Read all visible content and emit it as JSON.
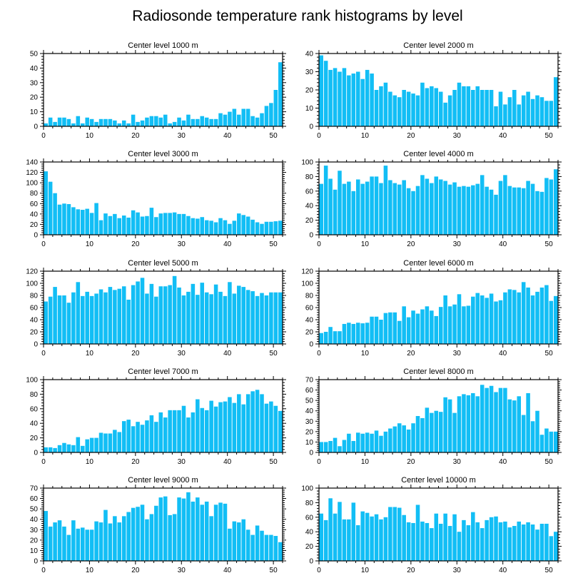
{
  "title": "Radiosonde temperature rank histograms by level",
  "colors": {
    "bar": "#12BEF5",
    "frame": "#000000",
    "background": "#ffffff"
  },
  "chart_data": [
    {
      "type": "bar",
      "title": "Center level 1000 m",
      "x": [
        0,
        1,
        2,
        3,
        4,
        5,
        6,
        7,
        8,
        9,
        10,
        11,
        12,
        13,
        14,
        15,
        16,
        17,
        18,
        19,
        20,
        21,
        22,
        23,
        24,
        25,
        26,
        27,
        28,
        29,
        30,
        31,
        32,
        33,
        34,
        35,
        36,
        37,
        38,
        39,
        40,
        41,
        42,
        43,
        44,
        45,
        46,
        47,
        48,
        49,
        50,
        51
      ],
      "values": [
        2,
        6,
        3,
        6,
        6,
        5,
        2,
        7,
        2,
        6,
        5,
        3,
        5,
        5,
        5,
        4,
        2,
        4,
        2,
        8,
        3,
        4,
        6,
        7,
        7,
        6,
        8,
        2,
        3,
        6,
        4,
        8,
        5,
        5,
        7,
        6,
        5,
        5,
        9,
        8,
        10,
        12,
        8,
        12,
        12,
        7,
        6,
        9,
        14,
        16,
        25,
        44
      ],
      "xlim": [
        0,
        52
      ],
      "ylim": [
        0,
        50
      ],
      "xticks": [
        0,
        10,
        20,
        30,
        40,
        50
      ],
      "yticks": [
        0,
        10,
        20,
        30,
        40,
        50
      ],
      "xlabel": "",
      "ylabel": ""
    },
    {
      "type": "bar",
      "title": "Center level 2000 m",
      "x": [
        0,
        1,
        2,
        3,
        4,
        5,
        6,
        7,
        8,
        9,
        10,
        11,
        12,
        13,
        14,
        15,
        16,
        17,
        18,
        19,
        20,
        21,
        22,
        23,
        24,
        25,
        26,
        27,
        28,
        29,
        30,
        31,
        32,
        33,
        34,
        35,
        36,
        37,
        38,
        39,
        40,
        41,
        42,
        43,
        44,
        45,
        46,
        47,
        48,
        49,
        50,
        51
      ],
      "values": [
        39,
        36,
        31,
        32,
        30,
        32,
        28,
        29,
        30,
        26,
        31,
        29,
        20,
        22,
        24,
        19,
        17,
        16,
        20,
        19,
        18,
        17,
        24,
        21,
        22,
        21,
        19,
        13,
        17,
        20,
        24,
        22,
        22,
        20,
        22,
        20,
        20,
        20,
        11,
        19,
        12,
        16,
        20,
        12,
        17,
        19,
        15,
        17,
        16,
        14,
        14,
        27
      ],
      "xlim": [
        0,
        52
      ],
      "ylim": [
        0,
        40
      ],
      "xticks": [
        0,
        10,
        20,
        30,
        40,
        50
      ],
      "yticks": [
        0,
        10,
        20,
        30,
        40
      ],
      "xlabel": "",
      "ylabel": ""
    },
    {
      "type": "bar",
      "title": "Center level 3000 m",
      "x": [
        0,
        1,
        2,
        3,
        4,
        5,
        6,
        7,
        8,
        9,
        10,
        11,
        12,
        13,
        14,
        15,
        16,
        17,
        18,
        19,
        20,
        21,
        22,
        23,
        24,
        25,
        26,
        27,
        28,
        29,
        30,
        31,
        32,
        33,
        34,
        35,
        36,
        37,
        38,
        39,
        40,
        41,
        42,
        43,
        44,
        45,
        46,
        47,
        48,
        49,
        50,
        51
      ],
      "values": [
        122,
        102,
        80,
        58,
        60,
        59,
        53,
        49,
        48,
        50,
        42,
        61,
        28,
        41,
        36,
        40,
        32,
        37,
        33,
        47,
        43,
        35,
        36,
        52,
        34,
        41,
        42,
        42,
        43,
        40,
        40,
        36,
        32,
        31,
        34,
        28,
        27,
        24,
        32,
        28,
        21,
        27,
        41,
        38,
        35,
        29,
        24,
        21,
        25,
        25,
        26,
        27
      ],
      "xlim": [
        0,
        52
      ],
      "ylim": [
        0,
        140
      ],
      "xticks": [
        0,
        10,
        20,
        30,
        40,
        50
      ],
      "yticks": [
        0,
        20,
        40,
        60,
        80,
        100,
        120,
        140
      ],
      "xlabel": "",
      "ylabel": ""
    },
    {
      "type": "bar",
      "title": "Center level 4000 m",
      "x": [
        0,
        1,
        2,
        3,
        4,
        5,
        6,
        7,
        8,
        9,
        10,
        11,
        12,
        13,
        14,
        15,
        16,
        17,
        18,
        19,
        20,
        21,
        22,
        23,
        24,
        25,
        26,
        27,
        28,
        29,
        30,
        31,
        32,
        33,
        34,
        35,
        36,
        37,
        38,
        39,
        40,
        41,
        42,
        43,
        44,
        45,
        46,
        47,
        48,
        49,
        50,
        51
      ],
      "values": [
        70,
        95,
        77,
        62,
        88,
        70,
        73,
        60,
        76,
        70,
        73,
        80,
        80,
        71,
        95,
        75,
        71,
        69,
        75,
        64,
        60,
        67,
        82,
        77,
        71,
        80,
        76,
        74,
        69,
        72,
        66,
        67,
        66,
        68,
        70,
        82,
        66,
        62,
        55,
        74,
        82,
        67,
        65,
        65,
        64,
        74,
        70,
        60,
        59,
        78,
        76,
        90
      ],
      "xlim": [
        0,
        52
      ],
      "ylim": [
        0,
        100
      ],
      "xticks": [
        0,
        10,
        20,
        30,
        40,
        50
      ],
      "yticks": [
        0,
        20,
        40,
        60,
        80,
        100
      ],
      "xlabel": "",
      "ylabel": ""
    },
    {
      "type": "bar",
      "title": "Center level 5000 m",
      "x": [
        0,
        1,
        2,
        3,
        4,
        5,
        6,
        7,
        8,
        9,
        10,
        11,
        12,
        13,
        14,
        15,
        16,
        17,
        18,
        19,
        20,
        21,
        22,
        23,
        24,
        25,
        26,
        27,
        28,
        29,
        30,
        31,
        32,
        33,
        34,
        35,
        36,
        37,
        38,
        39,
        40,
        41,
        42,
        43,
        44,
        45,
        46,
        47,
        48,
        49,
        50,
        51
      ],
      "values": [
        70,
        78,
        94,
        80,
        80,
        68,
        85,
        102,
        79,
        86,
        79,
        83,
        90,
        85,
        94,
        89,
        91,
        95,
        73,
        97,
        103,
        109,
        83,
        99,
        78,
        95,
        95,
        97,
        112,
        93,
        80,
        86,
        99,
        81,
        101,
        85,
        82,
        98,
        86,
        79,
        102,
        83,
        96,
        94,
        89,
        87,
        79,
        84,
        80,
        85,
        85,
        85
      ],
      "xlim": [
        0,
        52
      ],
      "ylim": [
        0,
        120
      ],
      "xticks": [
        0,
        10,
        20,
        30,
        40,
        50
      ],
      "yticks": [
        0,
        20,
        40,
        60,
        80,
        100,
        120
      ],
      "xlabel": "",
      "ylabel": ""
    },
    {
      "type": "bar",
      "title": "Center level 6000 m",
      "x": [
        0,
        1,
        2,
        3,
        4,
        5,
        6,
        7,
        8,
        9,
        10,
        11,
        12,
        13,
        14,
        15,
        16,
        17,
        18,
        19,
        20,
        21,
        22,
        23,
        24,
        25,
        26,
        27,
        28,
        29,
        30,
        31,
        32,
        33,
        34,
        35,
        36,
        37,
        38,
        39,
        40,
        41,
        42,
        43,
        44,
        45,
        46,
        47,
        48,
        49,
        50,
        51
      ],
      "values": [
        18,
        20,
        28,
        21,
        21,
        33,
        35,
        33,
        35,
        34,
        35,
        45,
        45,
        40,
        51,
        52,
        52,
        38,
        62,
        44,
        55,
        50,
        57,
        62,
        55,
        46,
        61,
        80,
        62,
        65,
        82,
        62,
        63,
        78,
        84,
        80,
        76,
        83,
        70,
        72,
        85,
        90,
        89,
        85,
        102,
        93,
        80,
        86,
        93,
        97,
        71,
        79
      ],
      "xlim": [
        0,
        52
      ],
      "ylim": [
        0,
        120
      ],
      "xticks": [
        0,
        10,
        20,
        30,
        40,
        50
      ],
      "yticks": [
        0,
        20,
        40,
        60,
        80,
        100,
        120
      ],
      "xlabel": "",
      "ylabel": ""
    },
    {
      "type": "bar",
      "title": "Center level 7000 m",
      "x": [
        0,
        1,
        2,
        3,
        4,
        5,
        6,
        7,
        8,
        9,
        10,
        11,
        12,
        13,
        14,
        15,
        16,
        17,
        18,
        19,
        20,
        21,
        22,
        23,
        24,
        25,
        26,
        27,
        28,
        29,
        30,
        31,
        32,
        33,
        34,
        35,
        36,
        37,
        38,
        39,
        40,
        41,
        42,
        43,
        44,
        45,
        46,
        47,
        48,
        49,
        50,
        51
      ],
      "values": [
        7,
        7,
        6,
        10,
        13,
        11,
        10,
        21,
        9,
        18,
        20,
        20,
        27,
        26,
        26,
        31,
        28,
        43,
        45,
        36,
        42,
        38,
        44,
        51,
        42,
        55,
        48,
        58,
        58,
        58,
        64,
        48,
        55,
        73,
        61,
        58,
        71,
        63,
        69,
        70,
        76,
        68,
        80,
        66,
        80,
        84,
        86,
        80,
        67,
        70,
        64,
        57
      ],
      "xlim": [
        0,
        52
      ],
      "ylim": [
        0,
        100
      ],
      "xticks": [
        0,
        10,
        20,
        30,
        40,
        50
      ],
      "yticks": [
        0,
        20,
        40,
        60,
        80,
        100
      ],
      "xlabel": "",
      "ylabel": ""
    },
    {
      "type": "bar",
      "title": "Center level 8000 m",
      "x": [
        0,
        1,
        2,
        3,
        4,
        5,
        6,
        7,
        8,
        9,
        10,
        11,
        12,
        13,
        14,
        15,
        16,
        17,
        18,
        19,
        20,
        21,
        22,
        23,
        24,
        25,
        26,
        27,
        28,
        29,
        30,
        31,
        32,
        33,
        34,
        35,
        36,
        37,
        38,
        39,
        40,
        41,
        42,
        43,
        44,
        45,
        46,
        47,
        48,
        49,
        50,
        51
      ],
      "values": [
        10,
        10,
        11,
        14,
        6,
        12,
        18,
        11,
        19,
        18,
        19,
        18,
        21,
        16,
        20,
        23,
        25,
        28,
        26,
        22,
        28,
        35,
        33,
        43,
        38,
        40,
        39,
        53,
        51,
        38,
        54,
        56,
        55,
        57,
        54,
        65,
        62,
        64,
        58,
        62,
        62,
        51,
        50,
        54,
        36,
        57,
        30,
        40,
        17,
        23,
        20,
        20
      ],
      "xlim": [
        0,
        52
      ],
      "ylim": [
        0,
        70
      ],
      "xticks": [
        0,
        10,
        20,
        30,
        40,
        50
      ],
      "yticks": [
        0,
        10,
        20,
        30,
        40,
        50,
        60,
        70
      ],
      "xlabel": "",
      "ylabel": ""
    },
    {
      "type": "bar",
      "title": "Center level 9000 m",
      "x": [
        0,
        1,
        2,
        3,
        4,
        5,
        6,
        7,
        8,
        9,
        10,
        11,
        12,
        13,
        14,
        15,
        16,
        17,
        18,
        19,
        20,
        21,
        22,
        23,
        24,
        25,
        26,
        27,
        28,
        29,
        30,
        31,
        32,
        33,
        34,
        35,
        36,
        37,
        38,
        39,
        40,
        41,
        42,
        43,
        44,
        45,
        46,
        47,
        48,
        49,
        50,
        51
      ],
      "values": [
        48,
        33,
        37,
        39,
        33,
        25,
        39,
        31,
        32,
        30,
        30,
        38,
        37,
        49,
        36,
        43,
        37,
        43,
        47,
        51,
        52,
        54,
        40,
        45,
        53,
        61,
        62,
        44,
        45,
        61,
        60,
        66,
        57,
        61,
        54,
        57,
        43,
        54,
        56,
        55,
        31,
        38,
        37,
        40,
        30,
        25,
        34,
        29,
        25,
        25,
        24,
        18
      ],
      "xlim": [
        0,
        52
      ],
      "ylim": [
        0,
        70
      ],
      "xticks": [
        0,
        10,
        20,
        30,
        40,
        50
      ],
      "yticks": [
        0,
        10,
        20,
        30,
        40,
        50,
        60,
        70
      ],
      "xlabel": "",
      "ylabel": ""
    },
    {
      "type": "bar",
      "title": "Center level 10000 m",
      "x": [
        0,
        1,
        2,
        3,
        4,
        5,
        6,
        7,
        8,
        9,
        10,
        11,
        12,
        13,
        14,
        15,
        16,
        17,
        18,
        19,
        20,
        21,
        22,
        23,
        24,
        25,
        26,
        27,
        28,
        29,
        30,
        31,
        32,
        33,
        34,
        35,
        36,
        37,
        38,
        39,
        40,
        41,
        42,
        43,
        44,
        45,
        46,
        47,
        48,
        49,
        50,
        51
      ],
      "values": [
        65,
        56,
        86,
        65,
        81,
        57,
        57,
        80,
        49,
        68,
        66,
        61,
        64,
        57,
        60,
        74,
        74,
        73,
        63,
        53,
        52,
        77,
        54,
        52,
        45,
        65,
        51,
        65,
        48,
        64,
        40,
        56,
        49,
        67,
        53,
        45,
        56,
        60,
        61,
        53,
        54,
        46,
        48,
        54,
        50,
        53,
        50,
        43,
        51,
        51,
        34,
        40
      ],
      "xlim": [
        0,
        52
      ],
      "ylim": [
        0,
        100
      ],
      "xticks": [
        0,
        10,
        20,
        30,
        40,
        50
      ],
      "yticks": [
        0,
        20,
        40,
        60,
        80,
        100
      ],
      "xlabel": "",
      "ylabel": ""
    }
  ]
}
